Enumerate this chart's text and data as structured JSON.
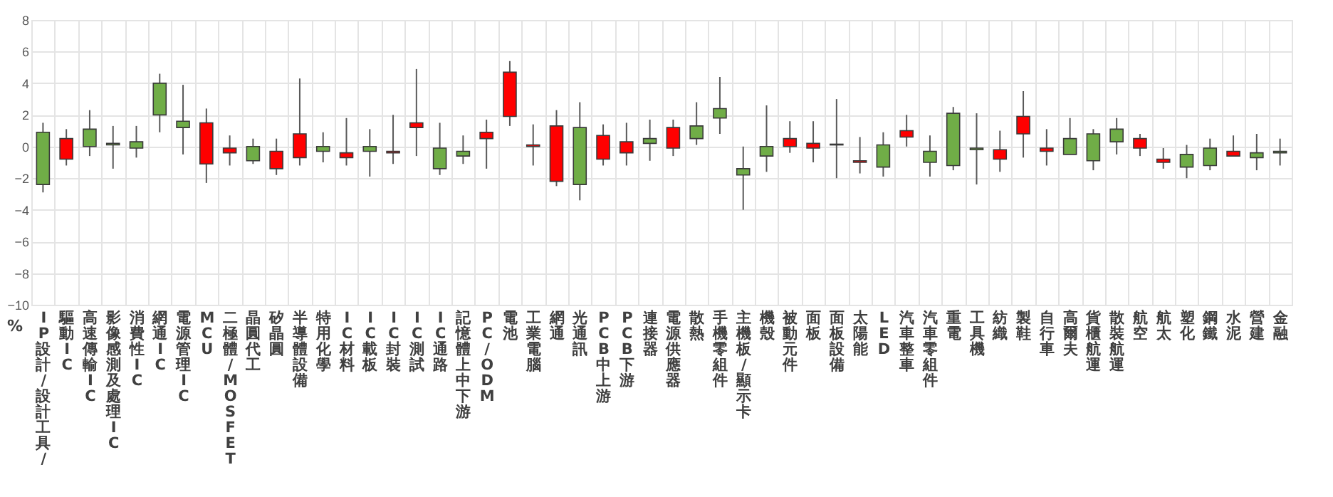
{
  "chart_data": {
    "type": "candlestick",
    "ylabel": "%",
    "grid": true,
    "categories": [
      "IP設計/設計工具/",
      "驅動IC",
      "高速傳輸IC",
      "影像感測及處理IC",
      "消費性IC",
      "網通IC",
      "電源管理IC",
      "MCU",
      "二極體/MOSFET",
      "晶圓代工",
      "矽晶圓",
      "半導體設備",
      "特用化學",
      "IC材料",
      "IC載板",
      "IC封裝",
      "IC測試",
      "IC通路",
      "記憶體上中下游",
      "PC/ODM",
      "電池",
      "工業電腦",
      "網通",
      "光通訊",
      "PCB中上游",
      "PCB下游",
      "連接器",
      "電源供應器",
      "散熱",
      "手機零組件",
      "主機板/顯示卡",
      "機殼",
      "被動元件",
      "面板",
      "面板設備",
      "太陽能",
      "LED",
      "汽車整車",
      "汽車零組件",
      "重電",
      "工具機",
      "紡織",
      "製鞋",
      "自行車",
      "高爾夫",
      "貨櫃航運",
      "散裝航運",
      "航空",
      "航太",
      "塑化",
      "鋼鐵",
      "水泥",
      "營建",
      "金融"
    ],
    "ohlc": [
      [
        0.9,
        1.5,
        -2.9,
        -2.4
      ],
      [
        -0.8,
        1.1,
        -1.2,
        0.5
      ],
      [
        1.1,
        2.3,
        -0.6,
        0
      ],
      [
        0.2,
        1.3,
        -1.4,
        0.1
      ],
      [
        0.3,
        1.3,
        -0.7,
        -0.1
      ],
      [
        4.0,
        4.6,
        0.9,
        2.0
      ],
      [
        1.6,
        3.9,
        -0.5,
        1.2
      ],
      [
        -1.1,
        2.4,
        -2.3,
        1.5
      ],
      [
        -0.4,
        0.7,
        -1.2,
        -0.1
      ],
      [
        0,
        0.5,
        -1.1,
        -0.9
      ],
      [
        -1.4,
        0.5,
        -1.8,
        -0.3
      ],
      [
        -0.7,
        4.3,
        -1.2,
        0.8
      ],
      [
        0,
        0.9,
        -1.0,
        -0.3
      ],
      [
        -0.7,
        1.8,
        -1.2,
        -0.4
      ],
      [
        0,
        1.1,
        -1.9,
        -0.3
      ],
      [
        -0.4,
        2.0,
        -1.1,
        -0.3
      ],
      [
        1.2,
        4.9,
        -0.6,
        1.5
      ],
      [
        -0.1,
        1.5,
        -1.8,
        -1.4
      ],
      [
        -0.3,
        0.7,
        -1.1,
        -0.6
      ],
      [
        0.5,
        1.7,
        -1.4,
        0.9
      ],
      [
        1.9,
        5.4,
        1.3,
        4.7
      ],
      [
        0,
        1.4,
        -1.2,
        0.1
      ],
      [
        -2.2,
        2.3,
        -2.5,
        1.3
      ],
      [
        1.2,
        2.8,
        -3.4,
        -2.4
      ],
      [
        -0.8,
        1.4,
        -1.2,
        0.7
      ],
      [
        -0.4,
        1.5,
        -1.2,
        0.3
      ],
      [
        0.5,
        1.7,
        -0.9,
        0.2
      ],
      [
        -0.1,
        1.7,
        -0.6,
        1.2
      ],
      [
        1.3,
        2.8,
        0.1,
        0.5
      ],
      [
        2.4,
        4.4,
        0.8,
        1.8
      ],
      [
        -1.4,
        0,
        -4.0,
        -1.8
      ],
      [
        0,
        2.6,
        -1.6,
        -0.6
      ],
      [
        0,
        1.6,
        -0.4,
        0.5
      ],
      [
        -0.1,
        1.6,
        -1.0,
        0.2
      ],
      [
        0.1,
        3.0,
        -2.0,
        0.15
      ],
      [
        -1.0,
        0.6,
        -1.7,
        -0.9
      ],
      [
        0.1,
        0.9,
        -1.9,
        -1.3
      ],
      [
        0.6,
        2.0,
        0,
        1.0
      ],
      [
        -0.3,
        0.7,
        -1.9,
        -1.0
      ],
      [
        2.1,
        2.5,
        -1.5,
        -1.2
      ],
      [
        -0.1,
        2.1,
        -2.4,
        -0.2
      ],
      [
        -0.8,
        1.0,
        -1.6,
        -0.2
      ],
      [
        0.8,
        3.5,
        -0.7,
        1.9
      ],
      [
        -0.3,
        1.1,
        -1.2,
        -0.1
      ],
      [
        0.5,
        1.8,
        -0.5,
        -0.5
      ],
      [
        0.8,
        1.1,
        -1.5,
        -0.9
      ],
      [
        1.1,
        1.8,
        -0.5,
        0.3
      ],
      [
        -0.1,
        0.8,
        -0.6,
        0.5
      ],
      [
        -1.0,
        -0.1,
        -1.4,
        -0.8
      ],
      [
        -0.5,
        0.1,
        -2.0,
        -1.3
      ],
      [
        -0.1,
        0.5,
        -1.5,
        -1.2
      ],
      [
        -0.6,
        0.7,
        -0.6,
        -0.3
      ],
      [
        -0.4,
        0.8,
        -1.5,
        -0.7
      ],
      [
        -0.3,
        0.5,
        -1.2,
        -0.4
      ]
    ],
    "colors": [
      "#70ad47",
      "#ff0000",
      "#70ad47",
      "#70ad47",
      "#70ad47",
      "#70ad47",
      "#70ad47",
      "#ff0000",
      "#ff0000",
      "#70ad47",
      "#ff0000",
      "#ff0000",
      "#70ad47",
      "#ff0000",
      "#70ad47",
      "#ff0000",
      "#ff0000",
      "#70ad47",
      "#70ad47",
      "#ff0000",
      "#ff0000",
      "#ff0000",
      "#ff0000",
      "#70ad47",
      "#ff0000",
      "#ff0000",
      "#70ad47",
      "#ff0000",
      "#70ad47",
      "#70ad47",
      "#70ad47",
      "#70ad47",
      "#ff0000",
      "#ff0000",
      "#ff0000",
      "#ff0000",
      "#70ad47",
      "#ff0000",
      "#70ad47",
      "#70ad47",
      "#70ad47",
      "#ff0000",
      "#ff0000",
      "#ff0000",
      "#70ad47",
      "#70ad47",
      "#70ad47",
      "#ff0000",
      "#ff0000",
      "#70ad47",
      "#70ad47",
      "#ff0000",
      "#70ad47",
      "#70ad47"
    ],
    "ylim": [
      -10,
      8
    ],
    "yticks": [
      -10,
      -8,
      -6,
      -4,
      -2,
      0,
      2,
      4,
      6,
      8
    ]
  }
}
